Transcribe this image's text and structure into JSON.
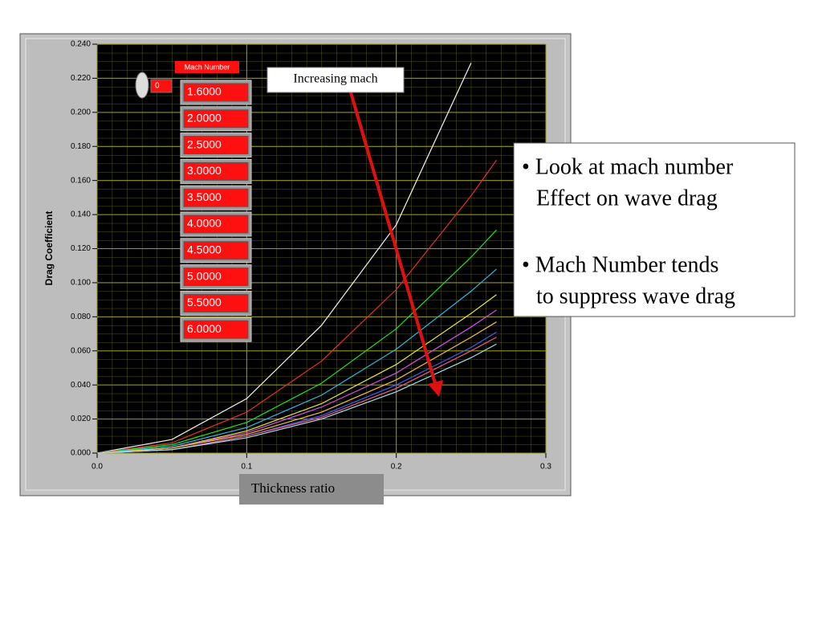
{
  "chart_data": {
    "type": "line",
    "x_label": "Thickness ratio",
    "y_label": "Drag Coefficient",
    "legend_title": "Mach Number",
    "array_index": "0",
    "annotation": "Increasing mach",
    "notes": [
      "• Look at mach number",
      "Effect on wave drag",
      "• Mach Number tends",
      "to suppress wave drag"
    ],
    "x": [
      0,
      0.05,
      0.1,
      0.15,
      0.2,
      0.25,
      0.267
    ],
    "series": [
      {
        "name": "1.6000",
        "color": "#f4f4f4",
        "values": [
          0,
          0.008,
          0.032,
          0.075,
          0.134,
          0.229,
          null
        ]
      },
      {
        "name": "2.0000",
        "color": "#e0302c",
        "values": [
          0,
          0.006,
          0.024,
          0.054,
          0.096,
          0.151,
          0.172
        ]
      },
      {
        "name": "2.5000",
        "color": "#22e022",
        "values": [
          0,
          0.005,
          0.018,
          0.041,
          0.073,
          0.115,
          0.131
        ]
      },
      {
        "name": "3.0000",
        "color": "#30b8e8",
        "values": [
          0,
          0.004,
          0.015,
          0.034,
          0.061,
          0.095,
          0.108
        ]
      },
      {
        "name": "3.5000",
        "color": "#e8e840",
        "values": [
          0,
          0.003,
          0.013,
          0.029,
          0.052,
          0.082,
          0.093
        ]
      },
      {
        "name": "4.0000",
        "color": "#d050e8",
        "values": [
          0,
          0.003,
          0.012,
          0.027,
          0.047,
          0.074,
          0.084
        ]
      },
      {
        "name": "4.5000",
        "color": "#f0c040",
        "values": [
          0,
          0.003,
          0.011,
          0.024,
          0.043,
          0.068,
          0.077
        ]
      },
      {
        "name": "5.0000",
        "color": "#4060f0",
        "values": [
          0,
          0.002,
          0.01,
          0.022,
          0.04,
          0.062,
          0.071
        ]
      },
      {
        "name": "5.5000",
        "color": "#f06090",
        "values": [
          0,
          0.002,
          0.01,
          0.021,
          0.038,
          0.06,
          0.068
        ]
      },
      {
        "name": "6.0000",
        "color": "#a0e0f0",
        "values": [
          0,
          0.002,
          0.009,
          0.02,
          0.036,
          0.056,
          0.064
        ]
      }
    ],
    "xlim": [
      0,
      0.3
    ],
    "xticks": [
      {
        "value": 0,
        "label": "0.0"
      },
      0.1,
      0.2,
      0.3
    ],
    "ylim": [
      0,
      0.24
    ],
    "yticks": [
      {
        "value": 0,
        "label": "0.000"
      },
      {
        "value": 0.02,
        "label": "0.020"
      },
      {
        "value": 0.04,
        "label": "0.040"
      },
      {
        "value": 0.06,
        "label": "0.060"
      },
      {
        "value": 0.08,
        "label": "0.080"
      },
      {
        "value": 0.1,
        "label": "0.100"
      },
      {
        "value": 0.12,
        "label": "0.120"
      },
      {
        "value": 0.14,
        "label": "0.140"
      },
      {
        "value": 0.16,
        "label": "0.160"
      },
      {
        "value": 0.18,
        "label": "0.180"
      },
      {
        "value": 0.2,
        "label": "0.200"
      },
      {
        "value": 0.22,
        "label": "0.220"
      },
      {
        "value": 0.24,
        "label": "0.240"
      }
    ],
    "grid": true
  }
}
